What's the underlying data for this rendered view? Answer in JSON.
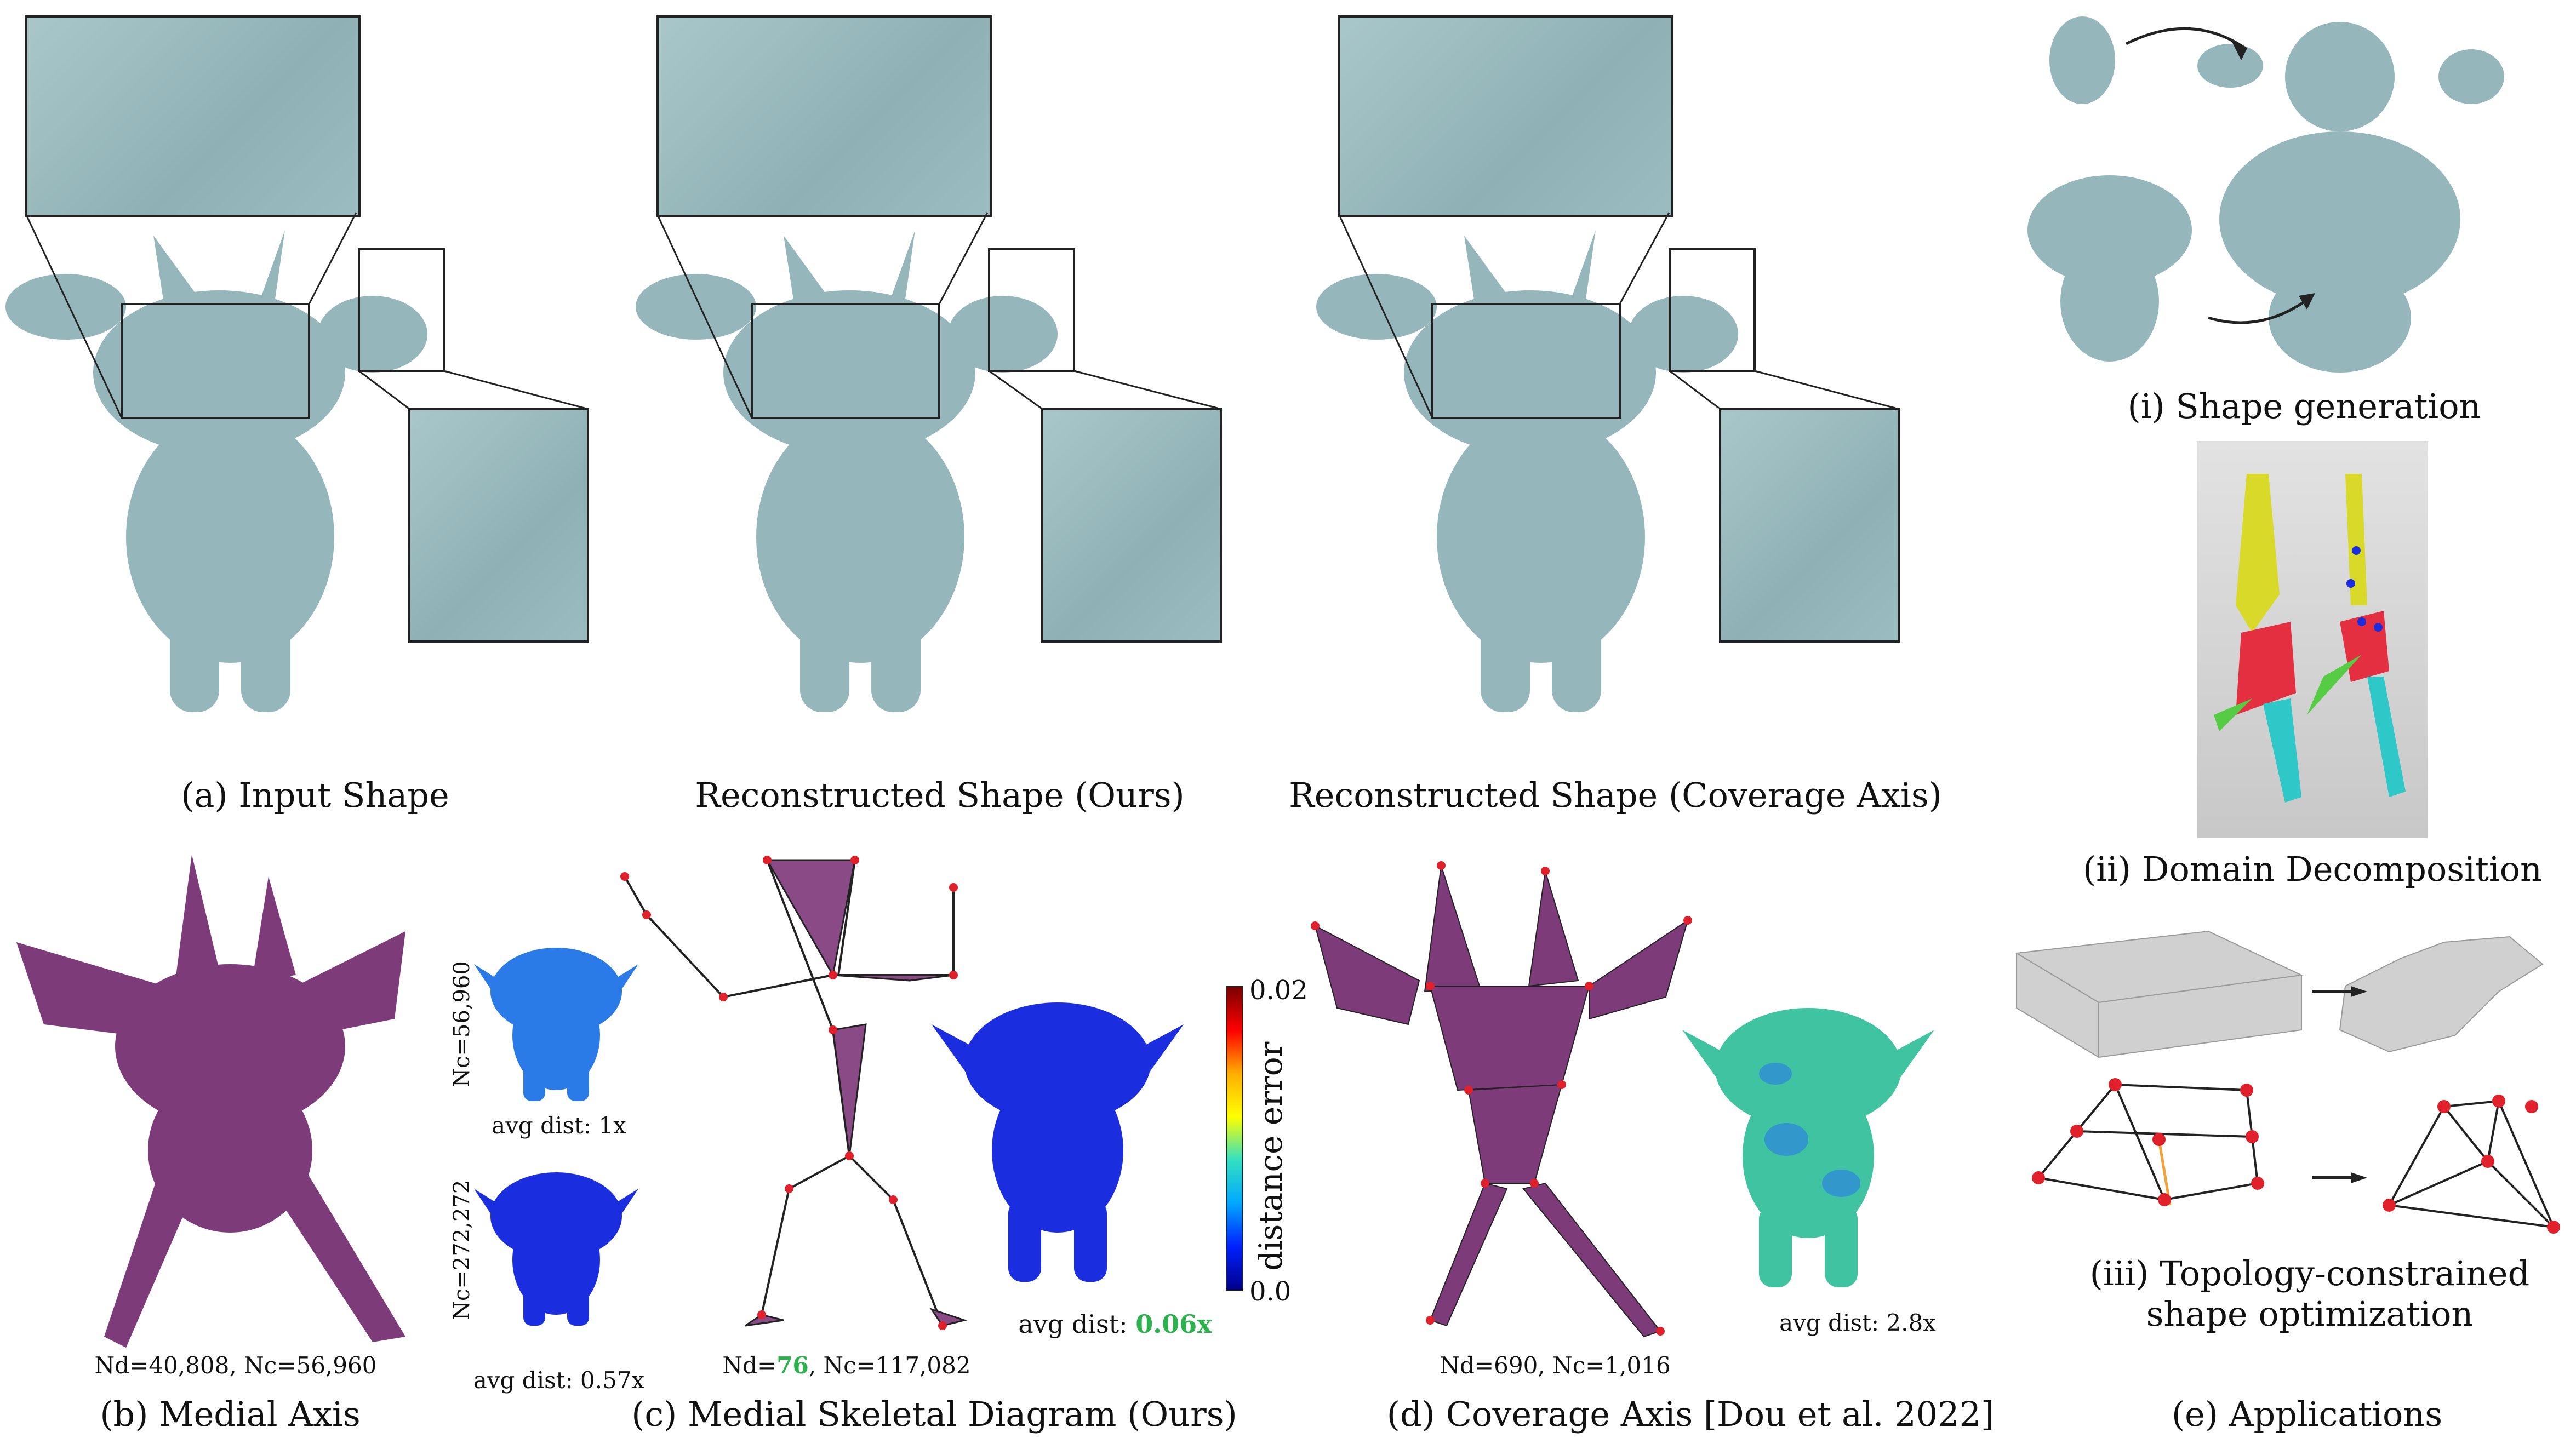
{
  "panel_a": {
    "caption": "(a) Input Shape"
  },
  "panel_recon_ours": {
    "caption": "Reconstructed Shape (Ours)"
  },
  "panel_recon_cov": {
    "caption": "Reconstructed Shape (Coverage Axis)"
  },
  "panel_b": {
    "caption": "(b) Medial Axis",
    "stats": "Nd=40,808, Nc=56,960",
    "upper_label": "Nc=56,960",
    "upper_dist": "avg dist: 1x",
    "lower_label": "Nc=272,272",
    "lower_dist": "avg dist: 0.57x"
  },
  "panel_c": {
    "caption": "(c) Medial Skeletal Diagram (Ours)",
    "stats_prefix": "Nd=",
    "stats_nd": "76",
    "stats_suffix": ", Nc=117,082",
    "dist_prefix": "avg dist: ",
    "dist_value": "0.06x"
  },
  "colorbar": {
    "label": "distance error",
    "max": "0.02",
    "min": "0.0",
    "stops": [
      "#7a0000",
      "#ff0000",
      "#ffae00",
      "#ffff00",
      "#33e0c0",
      "#00a8ff",
      "#0020ff",
      "#00008a"
    ]
  },
  "panel_d": {
    "caption": "(d) Coverage Axis [Dou et al. 2022]",
    "stats": "Nd=690, Nc=1,016",
    "dist": "avg dist: 2.8x"
  },
  "panel_e": {
    "caption": "(e) Applications",
    "app1": "(i) Shape generation",
    "app2": "(ii) Domain Decomposition",
    "app3_line1": "(iii) Topology-constrained",
    "app3_line2": "shape optimization"
  },
  "colors": {
    "shape": "#95b7bb",
    "medial": "#7d3b7a",
    "skeleton_node": "#e0202a",
    "green_highlight": "#2bb24c",
    "error_blue": "#1a2ee0",
    "error_green": "#3fc3a0"
  }
}
